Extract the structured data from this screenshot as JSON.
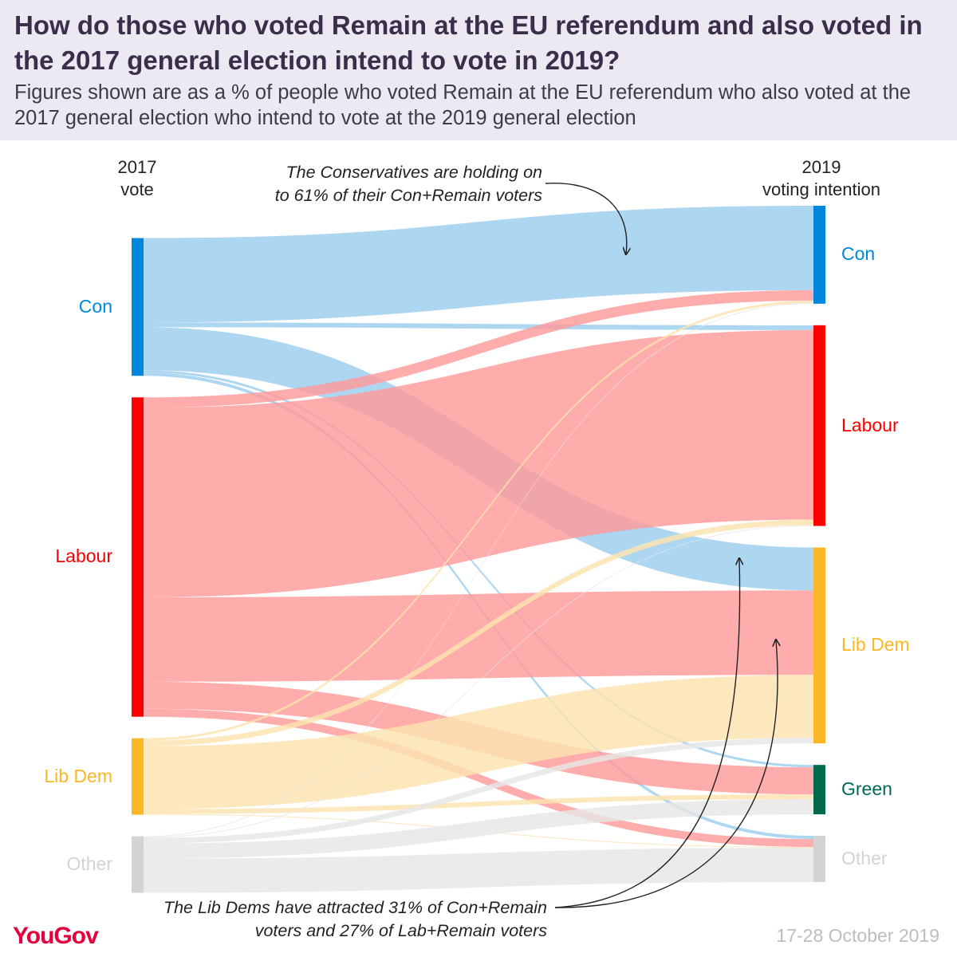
{
  "header": {
    "title": "How do those who voted Remain at the EU referendum and also voted in the 2017 general election intend to vote in 2019?",
    "subtitle": "Figures shown are as a % of people who voted Remain at the EU referendum who also voted at the 2017 general election who intend to vote at the 2019 general election"
  },
  "left_header": {
    "line1": "2017",
    "line2": "vote"
  },
  "right_header": {
    "line1": "2019",
    "line2": "voting intention"
  },
  "annotations": {
    "top": {
      "line1": "The Conservatives are holding on",
      "line2": "to 61% of their Con+Remain voters"
    },
    "bottom": {
      "line1": "The Lib Dems have attracted 31% of Con+Remain",
      "line2": "voters and 27% of Lab+Remain voters"
    }
  },
  "footer": {
    "brand": "YouGov",
    "date": "17-28 October 2019"
  },
  "colors": {
    "Con": "#0087dc",
    "Labour": "#ff0000",
    "Lib Dem": "#fbb726",
    "Green": "#006a4e",
    "Other": "#d3d3d3",
    "flow_Con": "#9bcdee",
    "flow_Labour": "#ff9a9a",
    "flow_Lib Dem": "#fde3ae",
    "flow_Other": "#e6e6e6"
  },
  "chart_data": {
    "type": "sankey",
    "unit": "% of Remain voters who voted in 2017",
    "sources": [
      "Con",
      "Labour",
      "Lib Dem",
      "Other"
    ],
    "targets": [
      "Con",
      "Labour",
      "Lib Dem",
      "Green",
      "Other"
    ],
    "flows": [
      {
        "from": "Con",
        "to": "Con",
        "value": 10.6
      },
      {
        "from": "Con",
        "to": "Labour",
        "value": 0.6
      },
      {
        "from": "Con",
        "to": "Lib Dem",
        "value": 5.4
      },
      {
        "from": "Con",
        "to": "Green",
        "value": 0.3
      },
      {
        "from": "Con",
        "to": "Other",
        "value": 0.4
      },
      {
        "from": "Labour",
        "to": "Con",
        "value": 1.3
      },
      {
        "from": "Labour",
        "to": "Labour",
        "value": 23.8
      },
      {
        "from": "Labour",
        "to": "Lib Dem",
        "value": 10.6
      },
      {
        "from": "Labour",
        "to": "Green",
        "value": 3.4
      },
      {
        "from": "Labour",
        "to": "Other",
        "value": 1.0
      },
      {
        "from": "Lib Dem",
        "to": "Con",
        "value": 0.3
      },
      {
        "from": "Lib Dem",
        "to": "Labour",
        "value": 0.7
      },
      {
        "from": "Lib Dem",
        "to": "Lib Dem",
        "value": 7.9
      },
      {
        "from": "Lib Dem",
        "to": "Green",
        "value": 0.6
      },
      {
        "from": "Lib Dem",
        "to": "Other",
        "value": 0.1
      },
      {
        "from": "Other",
        "to": "Con",
        "value": 0.1
      },
      {
        "from": "Other",
        "to": "Labour",
        "value": 0.1
      },
      {
        "from": "Other",
        "to": "Lib Dem",
        "value": 0.7
      },
      {
        "from": "Other",
        "to": "Green",
        "value": 1.9
      },
      {
        "from": "Other",
        "to": "Other",
        "value": 4.3
      }
    ]
  }
}
